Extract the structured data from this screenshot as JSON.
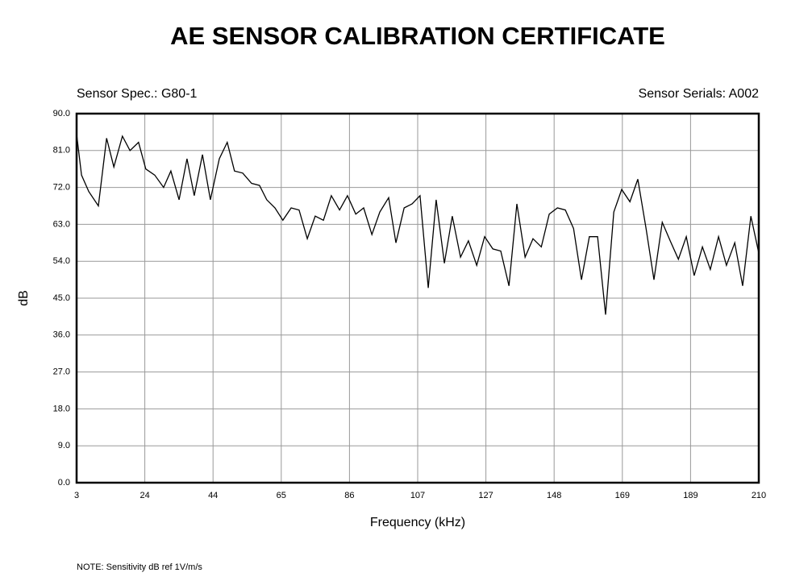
{
  "title": "AE SENSOR CALIBRATION CERTIFICATE",
  "spec": "Sensor Spec.: G80-1",
  "serials": "Sensor Serials: A002",
  "note": "NOTE:  Sensitivity dB ref 1V/m/s",
  "chart_data": {
    "type": "line",
    "xlabel": "Frequency (kHz)",
    "ylabel": "dB",
    "color": "#000000",
    "grid": true,
    "xlim": [
      3,
      210
    ],
    "ylim": [
      0,
      90
    ],
    "xticks": [
      3,
      {
        "value": 23.7,
        "label": "24"
      },
      {
        "value": 44.4,
        "label": "44"
      },
      {
        "value": 65.1,
        "label": "65"
      },
      {
        "value": 85.8,
        "label": "86"
      },
      {
        "value": 106.5,
        "label": "107"
      },
      {
        "value": 127.2,
        "label": "127"
      },
      {
        "value": 147.9,
        "label": "148"
      },
      {
        "value": 168.6,
        "label": "169"
      },
      {
        "value": 189.3,
        "label": "189"
      },
      210
    ],
    "yticks": [
      {
        "value": 0,
        "label": "0.0"
      },
      {
        "value": 9,
        "label": "9.0"
      },
      {
        "value": 18,
        "label": "18.0"
      },
      {
        "value": 27,
        "label": "27.0"
      },
      {
        "value": 36,
        "label": "36.0"
      },
      {
        "value": 45,
        "label": "45.0"
      },
      {
        "value": 54,
        "label": "54.0"
      },
      {
        "value": 63,
        "label": "63.0"
      },
      {
        "value": 72,
        "label": "72.0"
      },
      {
        "value": 81,
        "label": "81.0"
      },
      {
        "value": 90,
        "label": "90.0"
      }
    ],
    "x": [
      3.0,
      4.5,
      6.7,
      9.6,
      12.1,
      14.3,
      16.9,
      19.2,
      21.8,
      24.0,
      26.7,
      29.4,
      31.6,
      34.1,
      36.5,
      38.7,
      41.2,
      43.6,
      46.3,
      48.7,
      50.9,
      53.4,
      56.1,
      58.5,
      60.7,
      63.2,
      65.6,
      68.1,
      70.5,
      73.0,
      75.4,
      77.9,
      80.3,
      82.8,
      85.2,
      87.7,
      90.1,
      92.6,
      95.0,
      97.7,
      99.9,
      102.4,
      104.8,
      107.2,
      109.7,
      112.1,
      114.6,
      117.0,
      119.5,
      121.9,
      124.4,
      126.8,
      129.3,
      131.7,
      134.2,
      136.6,
      139.1,
      141.5,
      144.0,
      146.4,
      148.9,
      151.3,
      153.8,
      156.2,
      158.6,
      161.1,
      163.5,
      166.0,
      168.4,
      170.9,
      173.3,
      175.8,
      178.2,
      180.7,
      183.1,
      185.6,
      188.0,
      190.4,
      192.9,
      195.3,
      197.8,
      200.2,
      202.7,
      205.1,
      207.6,
      210.0
    ],
    "values": [
      85,
      75,
      71,
      67.5,
      84,
      77,
      84.5,
      81,
      83,
      76.5,
      75,
      72,
      76,
      69,
      79,
      70,
      80,
      69,
      79,
      83,
      76,
      75.5,
      73,
      72.5,
      69,
      67,
      64,
      67,
      66.5,
      59.5,
      65,
      64,
      70,
      66.5,
      70,
      65.5,
      67,
      60.5,
      66,
      69.5,
      58.5,
      67,
      68,
      70,
      47.5,
      69,
      53.5,
      65,
      55,
      59,
      53,
      60,
      57,
      56.5,
      48,
      68,
      55,
      59.5,
      57.5,
      65.5,
      67,
      66.5,
      62,
      49.5,
      60,
      60,
      41,
      66,
      71.5,
      68.5,
      74,
      62,
      49.5,
      63.5,
      59,
      54.5,
      60,
      50.5,
      57.5,
      52,
      60,
      53,
      58.5,
      48,
      65,
      56
    ]
  }
}
